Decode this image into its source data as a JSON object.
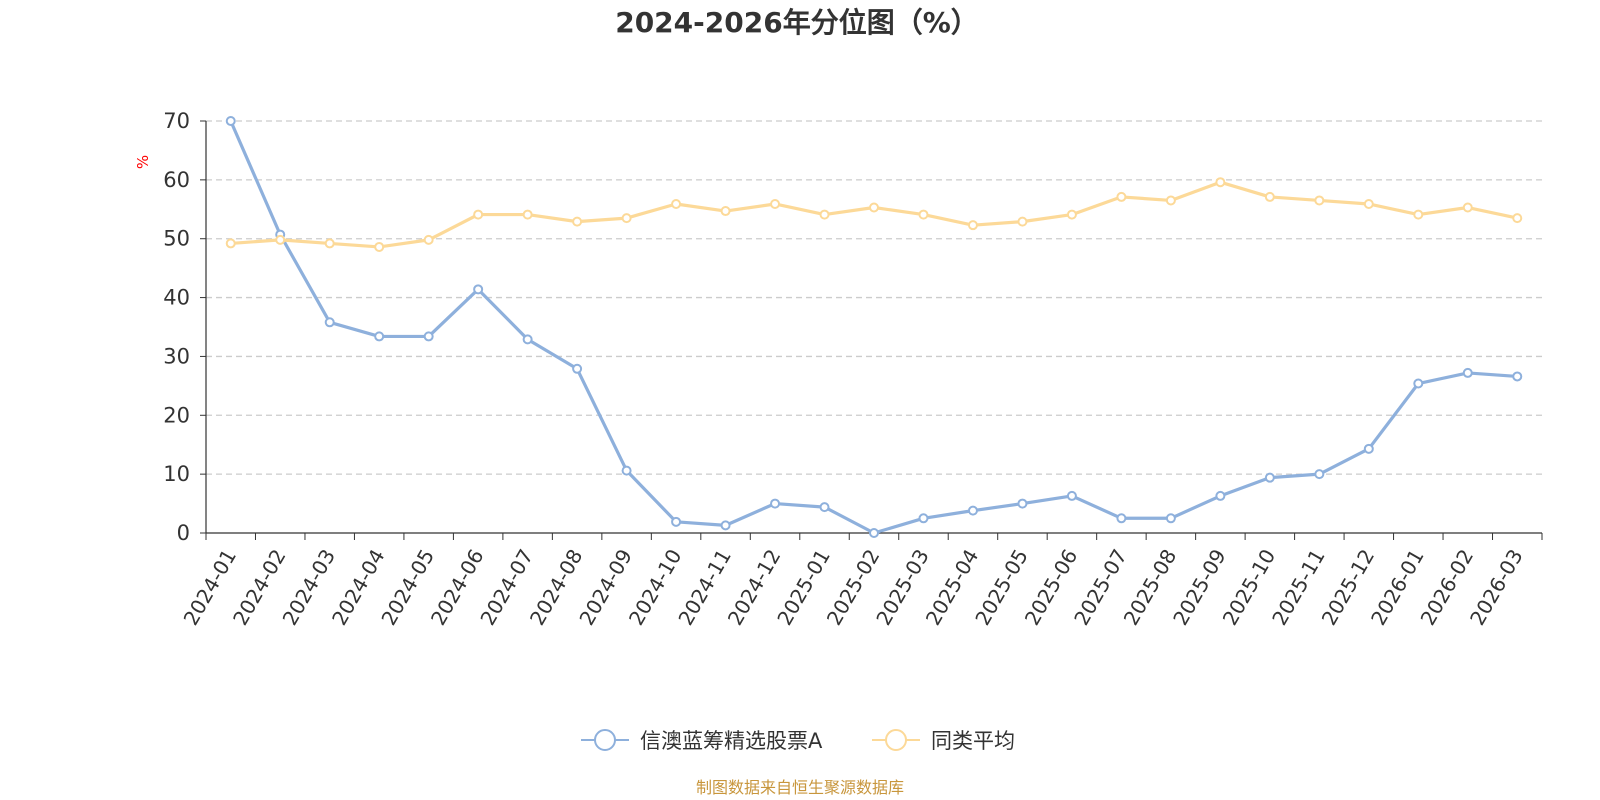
{
  "chart_data": {
    "type": "line",
    "title": "2024-2026年分位图（%）",
    "xlabel": "",
    "ylabel": "%",
    "ylim": [
      0,
      70
    ],
    "yticks": [
      0,
      10,
      20,
      30,
      40,
      50,
      60,
      70
    ],
    "grid": true,
    "legend_position": "bottom",
    "categories": [
      "2024-01",
      "2024-02",
      "2024-03",
      "2024-04",
      "2024-05",
      "2024-06",
      "2024-07",
      "2024-08",
      "2024-09",
      "2024-10",
      "2024-11",
      "2024-12",
      "2025-01",
      "2025-02",
      "2025-03",
      "2025-04",
      "2025-05",
      "2025-06",
      "2025-07",
      "2025-08",
      "2025-09",
      "2025-10",
      "2025-11",
      "2025-12",
      "2026-01",
      "2026-02",
      "2026-03"
    ],
    "series": [
      {
        "name": "信澳蓝筹精选股票A",
        "color": "#8eb0dc",
        "values": [
          70.0,
          50.7,
          35.8,
          33.4,
          33.4,
          41.4,
          32.9,
          27.9,
          10.6,
          1.9,
          1.3,
          5.0,
          4.4,
          0.0,
          2.5,
          3.8,
          5.0,
          6.3,
          2.5,
          2.5,
          6.3,
          9.4,
          10.0,
          14.3,
          25.4,
          27.2,
          26.6
        ]
      },
      {
        "name": "同类平均",
        "color": "#fcd998",
        "values": [
          49.2,
          49.8,
          49.2,
          48.6,
          49.8,
          54.1,
          54.1,
          52.9,
          53.5,
          55.9,
          54.7,
          55.9,
          54.1,
          55.3,
          54.1,
          52.3,
          52.9,
          54.1,
          57.1,
          56.5,
          59.6,
          57.1,
          56.5,
          55.9,
          54.1,
          55.3,
          53.5
        ]
      }
    ]
  },
  "source_text": "制图数据来自恒生聚源数据库"
}
